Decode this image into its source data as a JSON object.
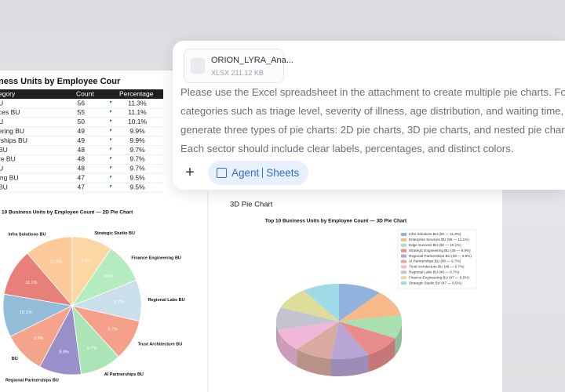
{
  "sheet": {
    "table": {
      "title": "ness Units by Employee Cour",
      "header": [
        "egory",
        "Count",
        "Percentage"
      ],
      "rows": [
        [
          "U",
          56,
          "11.3%"
        ],
        [
          "ces BU",
          55,
          "11.1%"
        ],
        [
          "U",
          50,
          "10.1%"
        ],
        [
          "ering BU",
          49,
          "9.9%"
        ],
        [
          "rships BU",
          49,
          "9.9%"
        ],
        [
          "BU",
          48,
          "9.7%"
        ],
        [
          "re BU",
          48,
          "9.7%"
        ],
        [
          "U",
          48,
          "9.7%"
        ],
        [
          "ing BU",
          47,
          "9.5%"
        ],
        [
          "BU",
          47,
          "9.5%"
        ]
      ]
    },
    "pie2d": {
      "type": "pie",
      "title": "10 Business Units by Employee Count — 2D Pie Chart",
      "labels": [
        "Infra Solutions BU",
        null,
        null,
        "BU",
        "Regional Partnerships BU",
        "AI Partnerships BU",
        "Trust Architecture BU",
        "Regional Labs BU",
        "Finance Engineering BU",
        "Strategic Studio BU"
      ],
      "values": [
        11.3,
        11.1,
        10.1,
        9.9,
        9.9,
        9.7,
        9.7,
        9.7,
        9.5,
        9.5
      ],
      "value_labels": [
        "11.3%",
        "11.1%",
        "10.1%",
        "9.9%",
        "9.9%",
        "9.7%",
        "9.7%",
        "9.7%",
        "9.5%",
        "9.5%"
      ],
      "colors": [
        "#fbc99a",
        "#e8807a",
        "#92bcd8",
        "#f5a48c",
        "#9a8fc8",
        "#abe5b7",
        "#f5a08a",
        "#c9dfe9",
        "#b4ecc0",
        "#fcd6a3"
      ]
    },
    "pie3d": {
      "type": "pie3d",
      "heading": "3D Pie Chart",
      "title": "Top 10 Business Units by Employee Count — 3D Pie Chart",
      "legend": [
        "Infra Solutions BU (56 — 11.3%)",
        "Enterprise Services BU (55 — 11.1%)",
        "Edge Success BU (50 — 10.1%)",
        "Strategic Engineering BU (49 — 9.9%)",
        "Regional Partnerships BU (49 — 9.9%)",
        "AI Partnerships BU (48 — 9.7%)",
        "Trust Architecture BU (48 — 9.7%)",
        "Regional Labs BU (48 — 9.7%)",
        "Finance Engineering BU (47 — 9.5%)",
        "Strategic Studio BU (47 — 9.5%)"
      ],
      "values": [
        11.3,
        11.1,
        10.1,
        9.9,
        9.9,
        9.7,
        9.7,
        9.7,
        9.5,
        9.5
      ],
      "colors": [
        "#8fb3dd",
        "#f7b98a",
        "#a8e0b0",
        "#e98c8c",
        "#b8a5d6",
        "#d9aba0",
        "#f0b7d8",
        "#c4c4d0",
        "#dede9c",
        "#9edbe6"
      ]
    }
  },
  "message": {
    "file_name": "ORION_LYRA_Ana...",
    "file_meta": "XLSX 211.12 KB",
    "prompt_lines": [
      "Please use the Excel spreadsheet in the attachment to create multiple pie charts. For",
      "categories such as triage level, severity of illness, age distribution, and waiting time,",
      "generate three types of pie charts: 2D pie charts, 3D pie charts, and nested pie charts.",
      "Each sector should include clear labels, percentages, and distinct colors."
    ],
    "add_button": "+",
    "mode": "Agent",
    "tool": "Sheets"
  }
}
